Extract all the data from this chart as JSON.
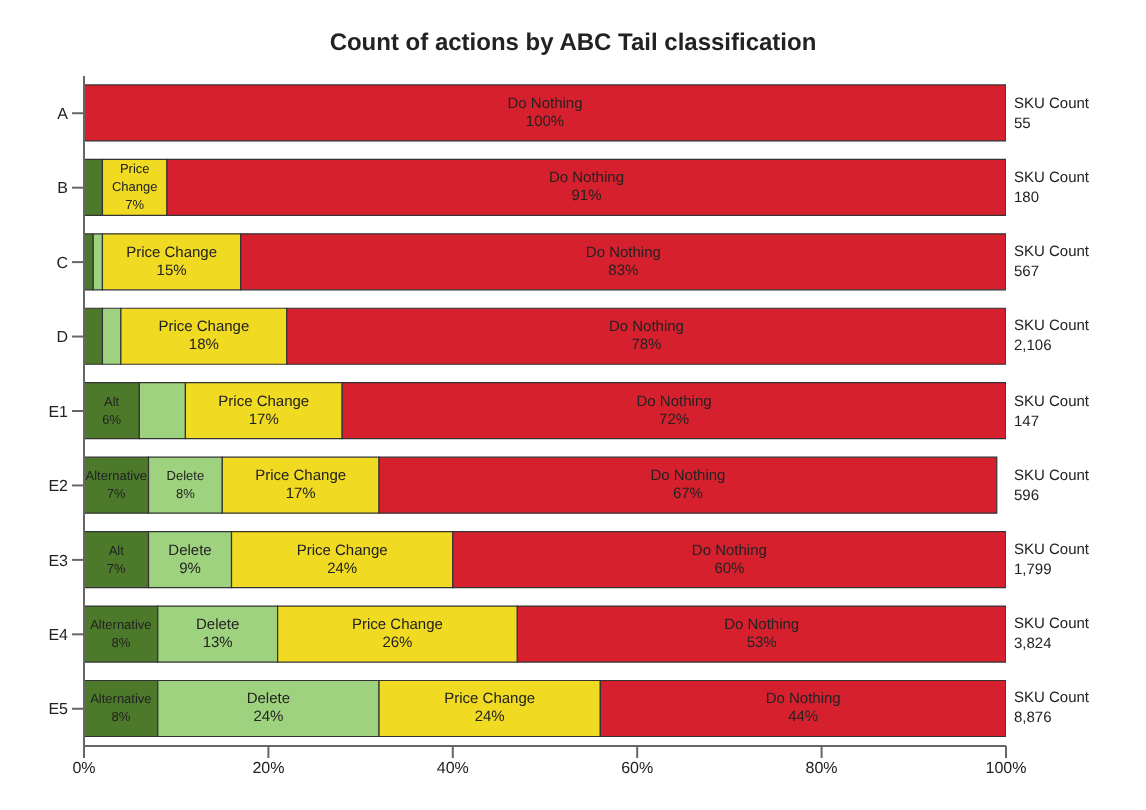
{
  "chart_data": {
    "type": "bar",
    "orientation": "horizontal",
    "stacked": true,
    "title": "Count of actions by ABC Tail classification",
    "categories": [
      "A",
      "B",
      "C",
      "D",
      "E1",
      "E2",
      "E3",
      "E4",
      "E5"
    ],
    "series": [
      {
        "color": "#4d7a2a",
        "values": [
          0,
          2,
          1,
          2,
          6,
          7,
          7,
          8,
          8
        ],
        "value_labels": [
          null,
          null,
          null,
          null,
          "Alt\n6%",
          "Alternative\n7%",
          "Alt\n7%",
          "Alternative\n8%",
          "Alternative\n8%"
        ]
      },
      {
        "color": "#9fd27e",
        "values": [
          0,
          0,
          1,
          2,
          5,
          8,
          9,
          13,
          24
        ],
        "value_labels": [
          null,
          null,
          null,
          null,
          null,
          "Delete\n8%",
          "Delete\n9%",
          "Delete\n13%",
          "Delete\n24%"
        ]
      },
      {
        "color": "#f1da22",
        "values": [
          0,
          7,
          15,
          18,
          17,
          17,
          24,
          26,
          24
        ],
        "value_labels": [
          null,
          "Price\nChange\n7%",
          "Price Change\n15%",
          "Price Change\n18%",
          "Price Change\n17%",
          "Price Change\n17%",
          "Price Change\n24%",
          "Price Change\n26%",
          "Price Change\n24%"
        ]
      },
      {
        "color": "#d7202e",
        "values": [
          100,
          91,
          83,
          78,
          72,
          67,
          60,
          53,
          44
        ],
        "value_labels": [
          "Do Nothing\n100%",
          "Do Nothing\n91%",
          "Do Nothing\n83%",
          "Do Nothing\n78%",
          "Do Nothing\n72%",
          "Do Nothing\n67%",
          "Do Nothing\n60%",
          "Do Nothing\n53%",
          "Do Nothing\n44%"
        ]
      }
    ],
    "xlim": [
      0,
      100
    ],
    "xticks": [
      {
        "value": 0,
        "label": "0%"
      },
      {
        "value": 20,
        "label": "20%"
      },
      {
        "value": 40,
        "label": "40%"
      },
      {
        "value": 60,
        "label": "60%"
      },
      {
        "value": 80,
        "label": "80%"
      },
      {
        "value": 100,
        "label": "100%"
      }
    ],
    "grid": false,
    "legend": false,
    "annotations": [
      "SKU Count\n55",
      "SKU Count\n180",
      "SKU Count\n567",
      "SKU Count\n2,106",
      "SKU Count\n147",
      "SKU Count\n596",
      "SKU Count\n1,799",
      "SKU Count\n3,824",
      "SKU Count\n8,876"
    ]
  }
}
